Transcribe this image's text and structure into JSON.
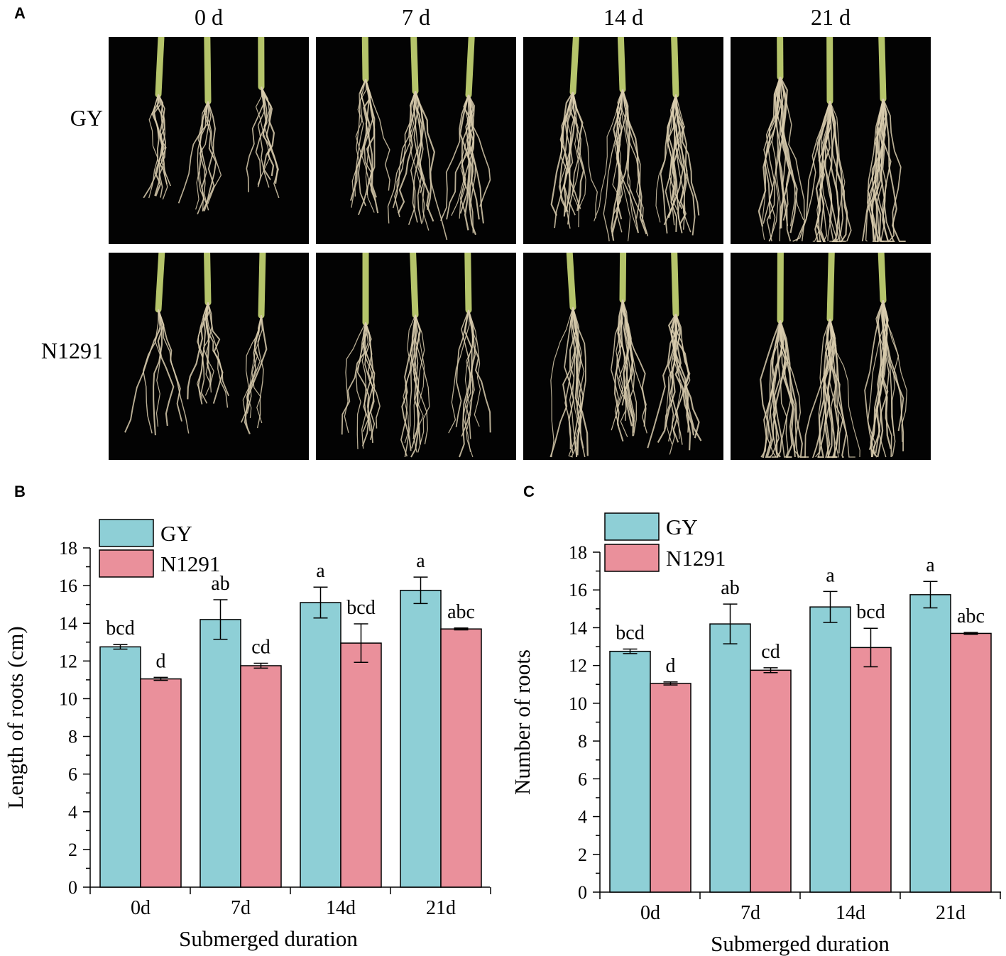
{
  "panelA": {
    "letter": "A",
    "columns": [
      "0 d",
      "7 d",
      "14 d",
      "21 d"
    ],
    "rows": [
      "GY",
      "N1291"
    ]
  },
  "panelB": {
    "letter": "B"
  },
  "panelC": {
    "letter": "C"
  },
  "colors": {
    "GY": "#8ecfd6",
    "N1291": "#ea909b",
    "photo_bg": "#030303",
    "root": "#d9ccae",
    "stem": "#b5c46a"
  },
  "chart_data": [
    {
      "type": "bar",
      "categories": [
        "0d",
        "7d",
        "14d",
        "21d"
      ],
      "xlabel": "Submerged duration",
      "ylabel": "Length of roots (cm)",
      "ylim": [
        0,
        18
      ],
      "yticks": [
        0,
        2,
        4,
        6,
        8,
        10,
        12,
        14,
        16,
        18
      ],
      "legend": "top-left",
      "series": [
        {
          "name": "GY",
          "values": [
            12.75,
            14.2,
            15.1,
            15.75
          ],
          "errors": [
            0.12,
            1.05,
            0.82,
            0.7
          ],
          "labels": [
            "bcd",
            "ab",
            "a",
            "a"
          ]
        },
        {
          "name": "N1291",
          "values": [
            11.05,
            11.75,
            12.95,
            13.7
          ],
          "errors": [
            0.08,
            0.13,
            1.02,
            0.05
          ],
          "labels": [
            "d",
            "cd",
            "bcd",
            "abc"
          ]
        }
      ]
    },
    {
      "type": "bar",
      "categories": [
        "0d",
        "7d",
        "14d",
        "21d"
      ],
      "xlabel": "Submerged duration",
      "ylabel": "Number of roots",
      "ylim": [
        0,
        18
      ],
      "yticks": [
        0,
        2,
        4,
        6,
        8,
        10,
        12,
        14,
        16,
        18
      ],
      "legend": "top-left",
      "series": [
        {
          "name": "GY",
          "values": [
            12.75,
            14.2,
            15.1,
            15.75
          ],
          "errors": [
            0.12,
            1.05,
            0.82,
            0.7
          ],
          "labels": [
            "bcd",
            "ab",
            "a",
            "a"
          ]
        },
        {
          "name": "N1291",
          "values": [
            11.05,
            11.75,
            12.95,
            13.7
          ],
          "errors": [
            0.08,
            0.13,
            1.02,
            0.05
          ],
          "labels": [
            "d",
            "cd",
            "bcd",
            "abc"
          ]
        }
      ]
    }
  ]
}
